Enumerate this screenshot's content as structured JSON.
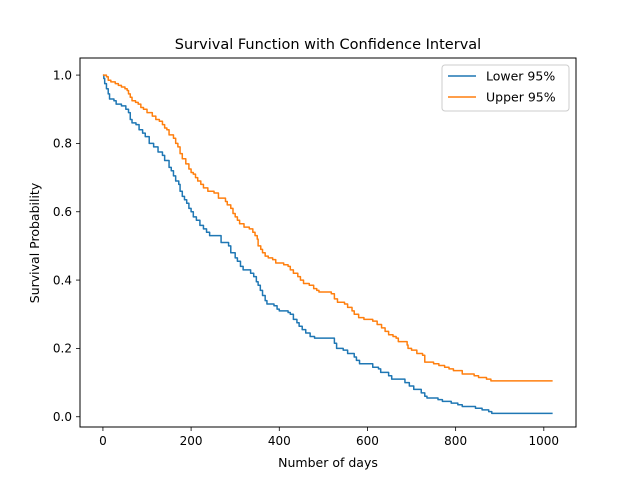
{
  "chart_data": {
    "type": "line",
    "title": "Survival Function with Confidence Interval",
    "xlabel": "Number of days",
    "ylabel": "Survival Probability",
    "xlim": [
      -52,
      1073
    ],
    "ylim": [
      -0.03,
      1.05
    ],
    "xticks": [
      0,
      200,
      400,
      600,
      800,
      1000
    ],
    "yticks": [
      0.0,
      0.2,
      0.4,
      0.6,
      0.8,
      1.0
    ],
    "xtick_labels": [
      "0",
      "200",
      "400",
      "600",
      "800",
      "1000"
    ],
    "ytick_labels": [
      "0.0",
      "0.2",
      "0.4",
      "0.6",
      "0.8",
      "1.0"
    ],
    "grid": false,
    "legend_position": "upper right",
    "series": [
      {
        "name": "Lower 95%",
        "color": "#1f77b4",
        "step": true,
        "points": [
          [
            0,
            1.0
          ],
          [
            2,
            0.99
          ],
          [
            4,
            0.975
          ],
          [
            8,
            0.96
          ],
          [
            12,
            0.945
          ],
          [
            15,
            0.93
          ],
          [
            25,
            0.925
          ],
          [
            30,
            0.915
          ],
          [
            42,
            0.91
          ],
          [
            52,
            0.9
          ],
          [
            58,
            0.89
          ],
          [
            62,
            0.87
          ],
          [
            66,
            0.86
          ],
          [
            75,
            0.855
          ],
          [
            82,
            0.84
          ],
          [
            90,
            0.83
          ],
          [
            96,
            0.82
          ],
          [
            105,
            0.8
          ],
          [
            115,
            0.79
          ],
          [
            125,
            0.775
          ],
          [
            135,
            0.765
          ],
          [
            140,
            0.75
          ],
          [
            150,
            0.73
          ],
          [
            155,
            0.72
          ],
          [
            160,
            0.705
          ],
          [
            165,
            0.69
          ],
          [
            172,
            0.68
          ],
          [
            175,
            0.66
          ],
          [
            180,
            0.645
          ],
          [
            185,
            0.635
          ],
          [
            190,
            0.625
          ],
          [
            195,
            0.61
          ],
          [
            200,
            0.6
          ],
          [
            205,
            0.585
          ],
          [
            212,
            0.575
          ],
          [
            220,
            0.56
          ],
          [
            228,
            0.55
          ],
          [
            235,
            0.54
          ],
          [
            242,
            0.53
          ],
          [
            268,
            0.51
          ],
          [
            285,
            0.5
          ],
          [
            290,
            0.48
          ],
          [
            300,
            0.465
          ],
          [
            305,
            0.455
          ],
          [
            312,
            0.44
          ],
          [
            318,
            0.43
          ],
          [
            335,
            0.42
          ],
          [
            342,
            0.41
          ],
          [
            348,
            0.395
          ],
          [
            352,
            0.385
          ],
          [
            357,
            0.37
          ],
          [
            362,
            0.355
          ],
          [
            368,
            0.34
          ],
          [
            372,
            0.33
          ],
          [
            388,
            0.325
          ],
          [
            395,
            0.315
          ],
          [
            400,
            0.31
          ],
          [
            420,
            0.305
          ],
          [
            425,
            0.3
          ],
          [
            432,
            0.285
          ],
          [
            440,
            0.275
          ],
          [
            445,
            0.265
          ],
          [
            452,
            0.255
          ],
          [
            460,
            0.245
          ],
          [
            470,
            0.235
          ],
          [
            480,
            0.23
          ],
          [
            525,
            0.215
          ],
          [
            530,
            0.2
          ],
          [
            545,
            0.195
          ],
          [
            555,
            0.185
          ],
          [
            570,
            0.175
          ],
          [
            575,
            0.165
          ],
          [
            582,
            0.155
          ],
          [
            612,
            0.145
          ],
          [
            625,
            0.14
          ],
          [
            630,
            0.13
          ],
          [
            648,
            0.12
          ],
          [
            655,
            0.11
          ],
          [
            685,
            0.1
          ],
          [
            695,
            0.09
          ],
          [
            705,
            0.08
          ],
          [
            722,
            0.07
          ],
          [
            730,
            0.06
          ],
          [
            735,
            0.055
          ],
          [
            760,
            0.05
          ],
          [
            770,
            0.045
          ],
          [
            790,
            0.04
          ],
          [
            805,
            0.035
          ],
          [
            815,
            0.03
          ],
          [
            845,
            0.025
          ],
          [
            860,
            0.02
          ],
          [
            875,
            0.015
          ],
          [
            882,
            0.01
          ],
          [
            1020,
            0.01
          ]
        ]
      },
      {
        "name": "Upper 95%",
        "color": "#ff7f0e",
        "step": true,
        "points": [
          [
            0,
            1.0
          ],
          [
            8,
            0.995
          ],
          [
            12,
            0.985
          ],
          [
            18,
            0.98
          ],
          [
            28,
            0.975
          ],
          [
            35,
            0.97
          ],
          [
            42,
            0.965
          ],
          [
            50,
            0.96
          ],
          [
            55,
            0.955
          ],
          [
            58,
            0.945
          ],
          [
            62,
            0.935
          ],
          [
            66,
            0.925
          ],
          [
            74,
            0.92
          ],
          [
            80,
            0.915
          ],
          [
            86,
            0.905
          ],
          [
            92,
            0.9
          ],
          [
            100,
            0.89
          ],
          [
            112,
            0.88
          ],
          [
            120,
            0.87
          ],
          [
            128,
            0.865
          ],
          [
            135,
            0.855
          ],
          [
            140,
            0.845
          ],
          [
            145,
            0.84
          ],
          [
            150,
            0.825
          ],
          [
            160,
            0.815
          ],
          [
            165,
            0.8
          ],
          [
            170,
            0.79
          ],
          [
            175,
            0.77
          ],
          [
            180,
            0.755
          ],
          [
            188,
            0.74
          ],
          [
            195,
            0.725
          ],
          [
            200,
            0.715
          ],
          [
            205,
            0.71
          ],
          [
            210,
            0.7
          ],
          [
            215,
            0.69
          ],
          [
            222,
            0.68
          ],
          [
            228,
            0.67
          ],
          [
            238,
            0.66
          ],
          [
            252,
            0.655
          ],
          [
            262,
            0.64
          ],
          [
            278,
            0.63
          ],
          [
            282,
            0.62
          ],
          [
            290,
            0.61
          ],
          [
            295,
            0.595
          ],
          [
            300,
            0.585
          ],
          [
            305,
            0.575
          ],
          [
            310,
            0.565
          ],
          [
            320,
            0.555
          ],
          [
            332,
            0.55
          ],
          [
            340,
            0.54
          ],
          [
            345,
            0.53
          ],
          [
            350,
            0.52
          ],
          [
            352,
            0.5
          ],
          [
            358,
            0.49
          ],
          [
            362,
            0.48
          ],
          [
            368,
            0.47
          ],
          [
            375,
            0.465
          ],
          [
            385,
            0.46
          ],
          [
            392,
            0.45
          ],
          [
            410,
            0.445
          ],
          [
            420,
            0.44
          ],
          [
            425,
            0.43
          ],
          [
            432,
            0.42
          ],
          [
            442,
            0.41
          ],
          [
            448,
            0.4
          ],
          [
            455,
            0.39
          ],
          [
            468,
            0.385
          ],
          [
            478,
            0.375
          ],
          [
            485,
            0.37
          ],
          [
            490,
            0.365
          ],
          [
            518,
            0.36
          ],
          [
            525,
            0.345
          ],
          [
            532,
            0.335
          ],
          [
            548,
            0.33
          ],
          [
            555,
            0.32
          ],
          [
            565,
            0.31
          ],
          [
            570,
            0.3
          ],
          [
            580,
            0.29
          ],
          [
            592,
            0.285
          ],
          [
            612,
            0.28
          ],
          [
            622,
            0.27
          ],
          [
            632,
            0.26
          ],
          [
            640,
            0.25
          ],
          [
            648,
            0.24
          ],
          [
            658,
            0.235
          ],
          [
            665,
            0.23
          ],
          [
            670,
            0.22
          ],
          [
            690,
            0.21
          ],
          [
            692,
            0.2
          ],
          [
            700,
            0.195
          ],
          [
            712,
            0.185
          ],
          [
            725,
            0.18
          ],
          [
            730,
            0.16
          ],
          [
            750,
            0.155
          ],
          [
            762,
            0.15
          ],
          [
            775,
            0.145
          ],
          [
            785,
            0.14
          ],
          [
            795,
            0.135
          ],
          [
            815,
            0.125
          ],
          [
            842,
            0.12
          ],
          [
            852,
            0.115
          ],
          [
            870,
            0.11
          ],
          [
            880,
            0.105
          ],
          [
            1020,
            0.105
          ]
        ]
      }
    ]
  }
}
